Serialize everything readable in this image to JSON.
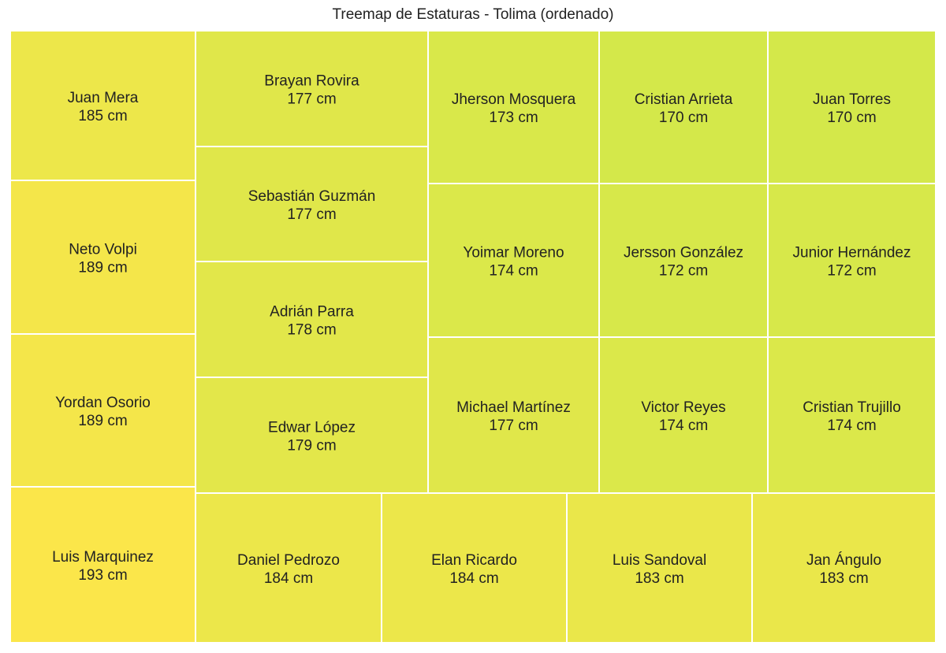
{
  "chart_data": {
    "type": "treemap",
    "title": "Treemap de Estaturas - Tolima (ordenado)",
    "unit": "cm",
    "colorscale": {
      "low": "#d4e84a",
      "high": "#fbe64a"
    },
    "items": [
      {
        "name": "Juan Mera",
        "value": 185
      },
      {
        "name": "Neto Volpi",
        "value": 189
      },
      {
        "name": "Yordan Osorio",
        "value": 189
      },
      {
        "name": "Luis Marquinez",
        "value": 193
      },
      {
        "name": "Brayan Rovira",
        "value": 177
      },
      {
        "name": "Sebastián Guzmán",
        "value": 177
      },
      {
        "name": "Adrián Parra",
        "value": 178
      },
      {
        "name": "Edwar López",
        "value": 179
      },
      {
        "name": "Jherson Mosquera",
        "value": 173
      },
      {
        "name": "Cristian Arrieta",
        "value": 170
      },
      {
        "name": "Juan Torres",
        "value": 170
      },
      {
        "name": "Yoimar Moreno",
        "value": 174
      },
      {
        "name": "Jersson González",
        "value": 172
      },
      {
        "name": "Junior Hernández",
        "value": 172
      },
      {
        "name": "Michael Martínez",
        "value": 177
      },
      {
        "name": "Victor Reyes",
        "value": 174
      },
      {
        "name": "Cristian Trujillo",
        "value": 174
      },
      {
        "name": "Daniel Pedrozo",
        "value": 184
      },
      {
        "name": "Elan Ricardo",
        "value": 184
      },
      {
        "name": "Luis Sandoval",
        "value": 183
      },
      {
        "name": "Jan Ángulo",
        "value": 183
      }
    ]
  }
}
